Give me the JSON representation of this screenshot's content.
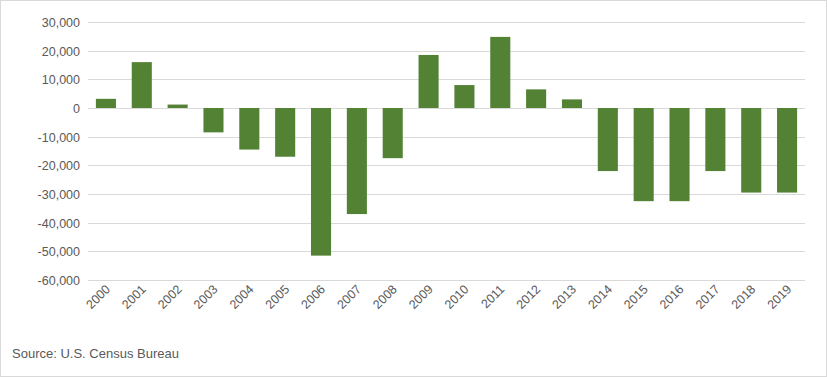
{
  "chart_data": {
    "type": "bar",
    "categories": [
      "2000",
      "2001",
      "2002",
      "2003",
      "2004",
      "2005",
      "2006",
      "2007",
      "2008",
      "2009",
      "2010",
      "2011",
      "2012",
      "2013",
      "2014",
      "2015",
      "2016",
      "2017",
      "2018",
      "2019"
    ],
    "values": [
      3200,
      16000,
      1200,
      -8500,
      -14500,
      -17000,
      -51500,
      -37000,
      -17500,
      18500,
      8000,
      24800,
      6500,
      3000,
      -22000,
      -32500,
      -32500,
      -22000,
      -29500,
      -29500
    ],
    "color": "#548235",
    "ylim": [
      -60000,
      30000
    ],
    "yticks": [
      {
        "value": -60000,
        "label": "-60,000"
      },
      {
        "value": -50000,
        "label": "-50,000"
      },
      {
        "value": -40000,
        "label": "-40,000"
      },
      {
        "value": -30000,
        "label": "-30,000"
      },
      {
        "value": -20000,
        "label": "-20,000"
      },
      {
        "value": -10000,
        "label": "-10,000"
      },
      0,
      {
        "value": 10000,
        "label": "10,000"
      },
      {
        "value": 20000,
        "label": "20,000"
      },
      {
        "value": 30000,
        "label": "30,000"
      }
    ],
    "grid": true,
    "annotations": [
      "Source: U.S. Census Bureau"
    ]
  }
}
